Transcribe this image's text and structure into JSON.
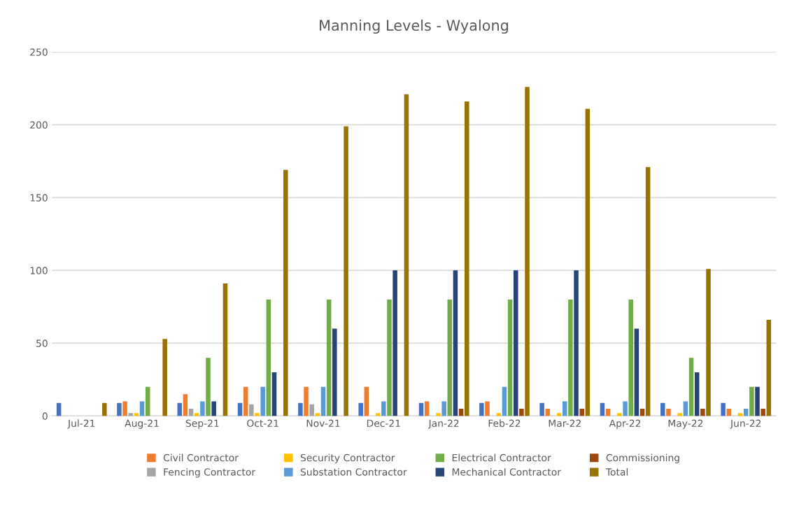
{
  "chart_data": {
    "type": "bar",
    "title": "Manning Levels - Wyalong",
    "categories": [
      "Jul-21",
      "Aug-21",
      "Sep-21",
      "Oct-21",
      "Nov-21",
      "Dec-21",
      "Jan-22",
      "Feb-22",
      "Mar-22",
      "Apr-22",
      "May-22",
      "Jun-22"
    ],
    "series": [
      {
        "color": "#4472c4",
        "values": [
          9,
          9,
          9,
          9,
          9,
          9,
          9,
          9,
          9,
          9,
          9,
          9
        ]
      },
      {
        "name": "Civil Contractor",
        "color": "#ed7d31",
        "values": [
          null,
          10,
          15,
          20,
          20,
          20,
          10,
          10,
          5,
          5,
          5,
          5
        ]
      },
      {
        "name": "Fencing Contractor",
        "color": "#a5a5a5",
        "values": [
          null,
          2,
          5,
          8,
          8,
          null,
          null,
          null,
          null,
          null,
          null,
          null
        ]
      },
      {
        "name": "Security Contractor",
        "color": "#ffc000",
        "values": [
          null,
          2,
          2,
          2,
          2,
          2,
          2,
          2,
          2,
          2,
          2,
          2
        ]
      },
      {
        "name": "Substation Contractor",
        "color": "#5b9bd5",
        "values": [
          null,
          10,
          10,
          20,
          20,
          10,
          10,
          20,
          10,
          10,
          10,
          5
        ]
      },
      {
        "name": "Electrical Contractor",
        "color": "#70ad47",
        "values": [
          null,
          20,
          40,
          80,
          80,
          80,
          80,
          80,
          80,
          80,
          40,
          20
        ]
      },
      {
        "name": "Mechanical Contractor",
        "color": "#264478",
        "values": [
          null,
          null,
          10,
          30,
          60,
          100,
          100,
          100,
          100,
          60,
          30,
          20
        ]
      },
      {
        "name": "Commissioning",
        "color": "#9e480e",
        "values": [
          null,
          null,
          null,
          null,
          null,
          null,
          5,
          5,
          5,
          5,
          5,
          5
        ]
      },
      {
        "name": "Total",
        "color": "#997300",
        "values": [
          9,
          53,
          91,
          169,
          199,
          221,
          216,
          226,
          211,
          171,
          101,
          66
        ]
      }
    ],
    "ylim": [
      0,
      250
    ],
    "yticks": [
      0,
      50,
      100,
      150,
      200,
      250
    ],
    "grid": "y",
    "legend": "bottom"
  }
}
